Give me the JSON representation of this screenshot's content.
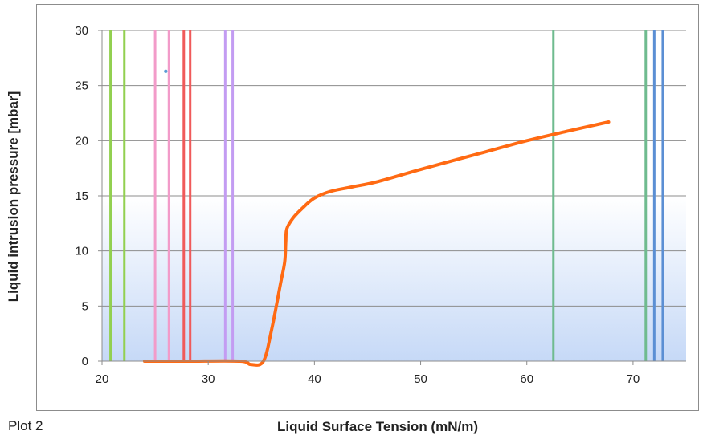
{
  "chart_data": {
    "type": "line",
    "title": "",
    "xlabel": "Liquid Surface Tension (mN/m)",
    "ylabel": "Liquid intrusion pressure [mbar]",
    "xlim": [
      20,
      75
    ],
    "ylim": [
      0,
      30
    ],
    "x_ticks": [
      20,
      30,
      40,
      50,
      60,
      70
    ],
    "y_ticks": [
      0,
      5,
      10,
      15,
      20,
      25,
      30
    ],
    "grid": "horizontal",
    "background_band": {
      "y_range": [
        0,
        15
      ],
      "color_top": "#ffffff",
      "color_bottom": "#c6d9f7"
    },
    "vertical_lines": [
      {
        "x": 20.8,
        "color": "#92d050"
      },
      {
        "x": 22.1,
        "color": "#92d050"
      },
      {
        "x": 25.0,
        "color": "#f29bc9"
      },
      {
        "x": 26.3,
        "color": "#f29bc9"
      },
      {
        "x": 27.7,
        "color": "#f05a5a"
      },
      {
        "x": 28.3,
        "color": "#f05a5a"
      },
      {
        "x": 31.6,
        "color": "#c39cf2"
      },
      {
        "x": 32.3,
        "color": "#c39cf2"
      },
      {
        "x": 62.5,
        "color": "#6fbb8f"
      },
      {
        "x": 71.2,
        "color": "#6fbb8f"
      },
      {
        "x": 72.0,
        "color": "#5b8fd4"
      },
      {
        "x": 72.8,
        "color": "#5b8fd4"
      }
    ],
    "markers": [
      {
        "x": 26.0,
        "y": 26.3,
        "color": "#5b9bd5"
      }
    ],
    "series": [
      {
        "color": "#ff6a13",
        "x": [
          24.0,
          28.0,
          33.0,
          34.0,
          35.2,
          36.0,
          36.8,
          37.2,
          37.3,
          37.4,
          38.0,
          39.0,
          40.0,
          41.5,
          43.5,
          46.0,
          50.0,
          55.0,
          60.0,
          64.0,
          67.7
        ],
        "y": [
          0,
          0,
          0,
          -0.3,
          0,
          3.0,
          7.0,
          9.0,
          10.8,
          12.0,
          13.0,
          14.0,
          14.8,
          15.4,
          15.8,
          16.3,
          17.4,
          18.7,
          20.0,
          20.9,
          21.7
        ]
      }
    ]
  },
  "footer": {
    "plot_label": "Plot 2"
  }
}
